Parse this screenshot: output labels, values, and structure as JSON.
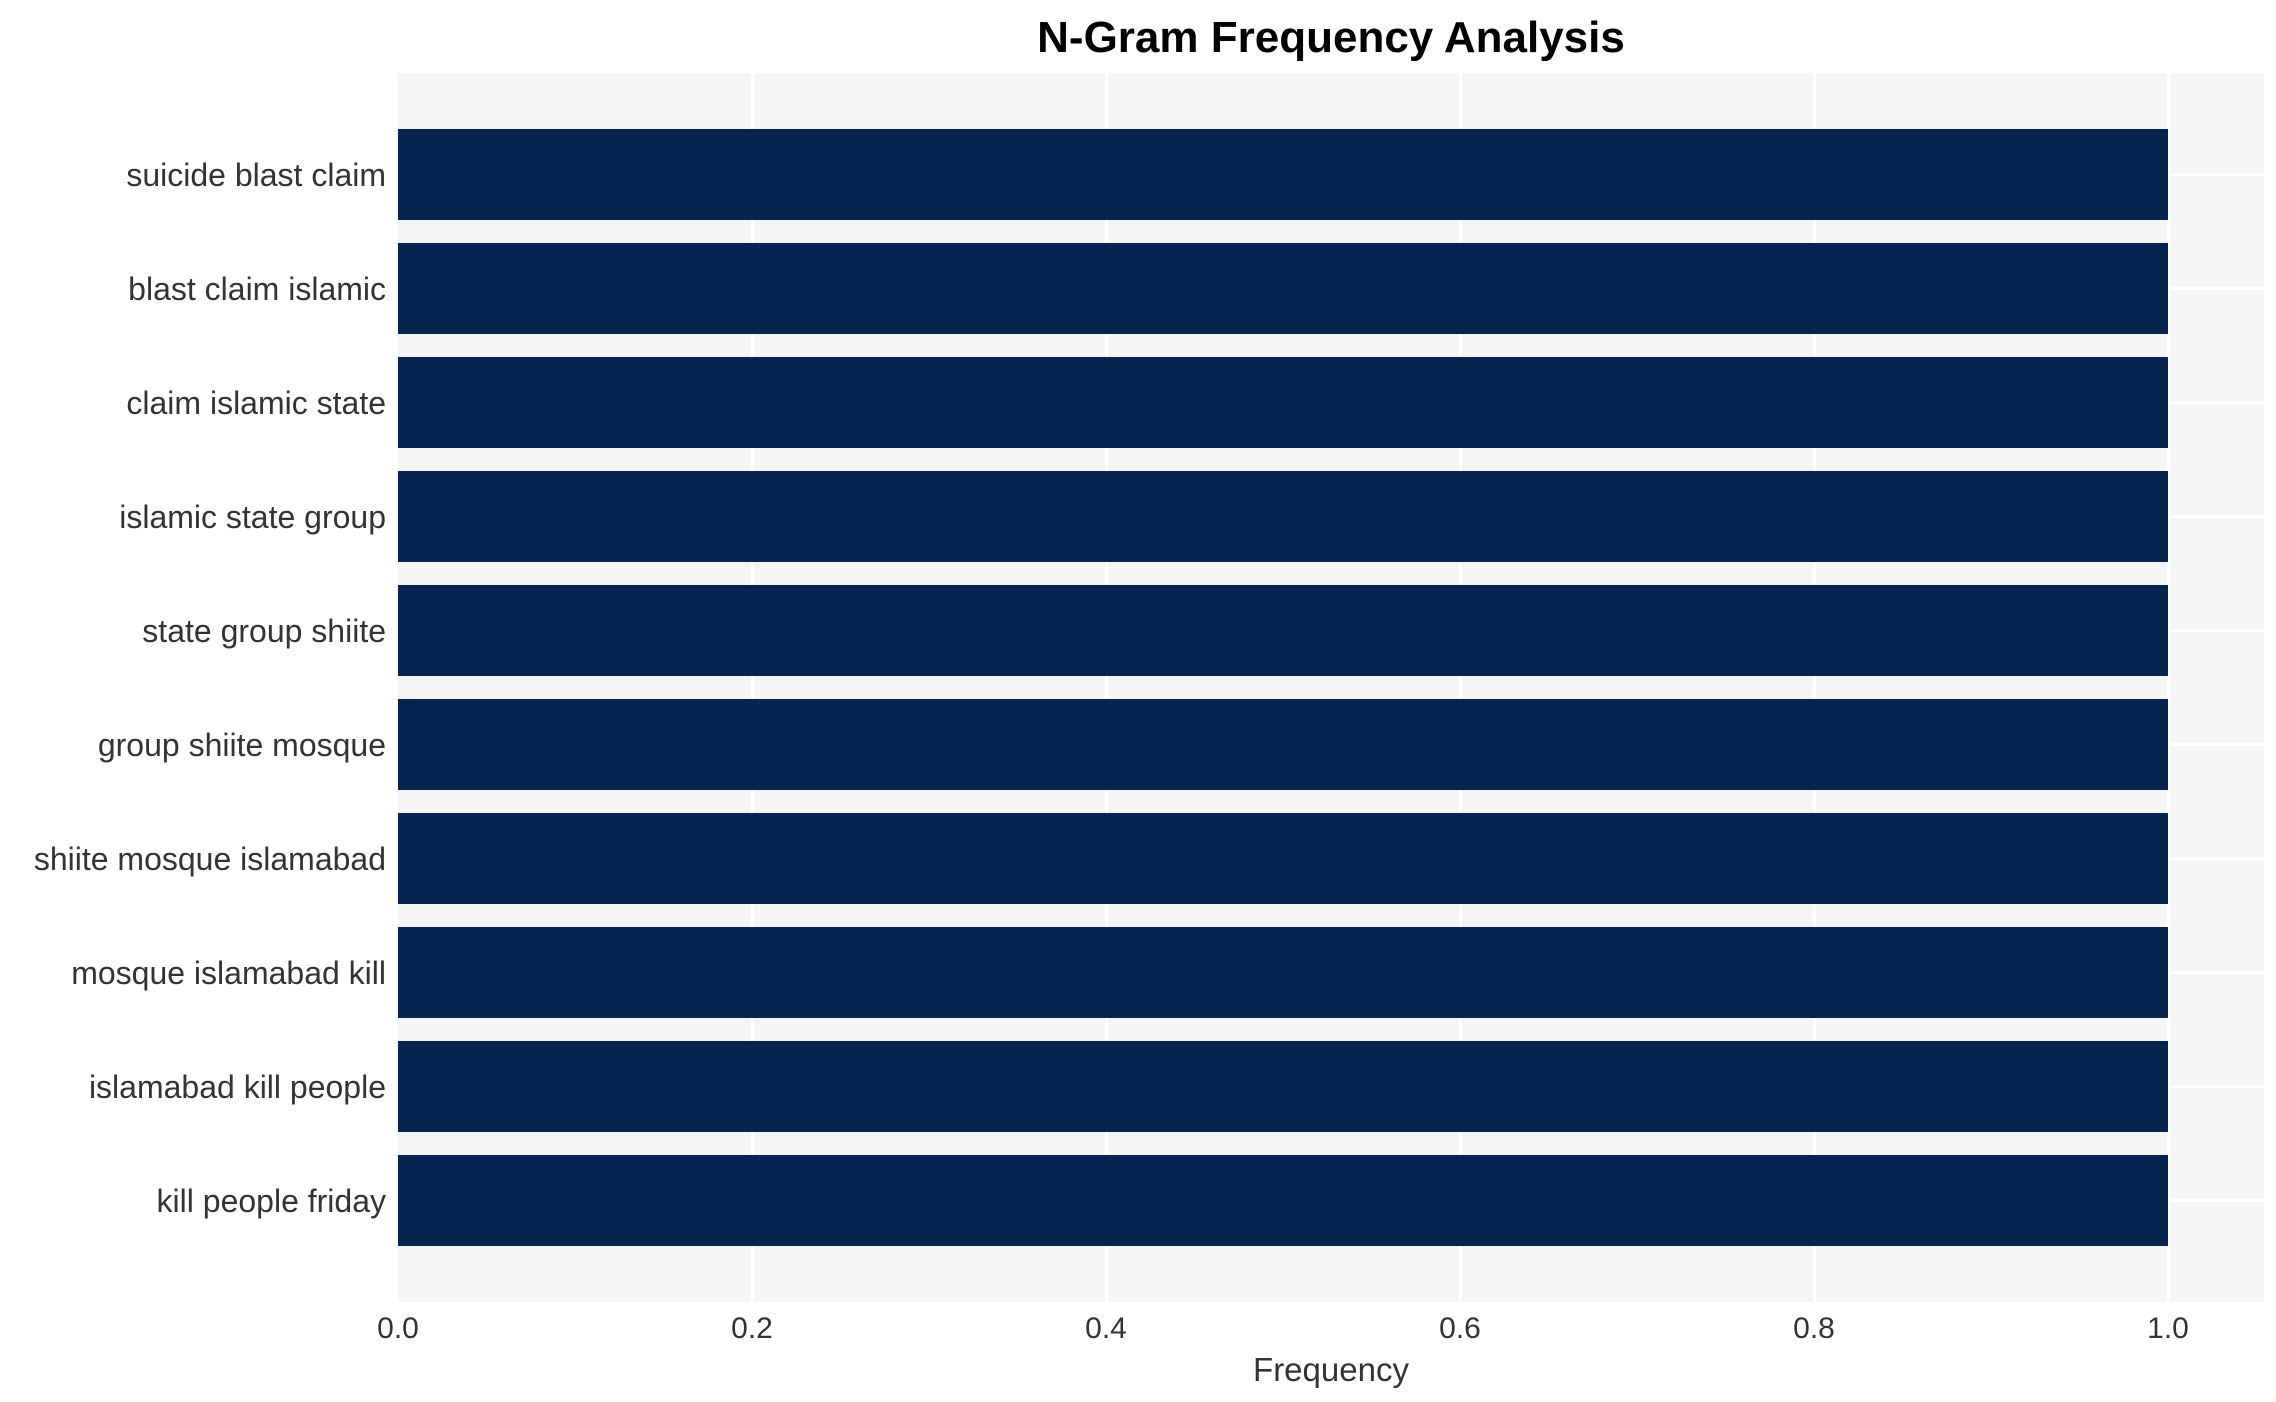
{
  "chart_data": {
    "type": "bar",
    "orientation": "horizontal",
    "title": "N-Gram Frequency Analysis",
    "xlabel": "Frequency",
    "ylabel": "",
    "categories": [
      "suicide blast claim",
      "blast claim islamic",
      "claim islamic state",
      "islamic state group",
      "state group shiite",
      "group shiite mosque",
      "shiite mosque islamabad",
      "mosque islamabad kill",
      "islamabad kill people",
      "kill people friday"
    ],
    "values": [
      1.0,
      1.0,
      1.0,
      1.0,
      1.0,
      1.0,
      1.0,
      1.0,
      1.0,
      1.0
    ],
    "xlim": [
      0,
      1.054
    ],
    "xticks": [
      0.0,
      0.2,
      0.4,
      0.6,
      0.8,
      1.0
    ],
    "xtick_labels": [
      "0.0",
      "0.2",
      "0.4",
      "0.6",
      "0.8",
      "1.0"
    ],
    "grid": "on",
    "legend": "none"
  },
  "colors": {
    "bar": "#052550",
    "plot_background": "#f5f5f6",
    "gridline": "#ffffff",
    "text": "#333333",
    "title": "#000000",
    "figure_background": "#ffffff"
  }
}
